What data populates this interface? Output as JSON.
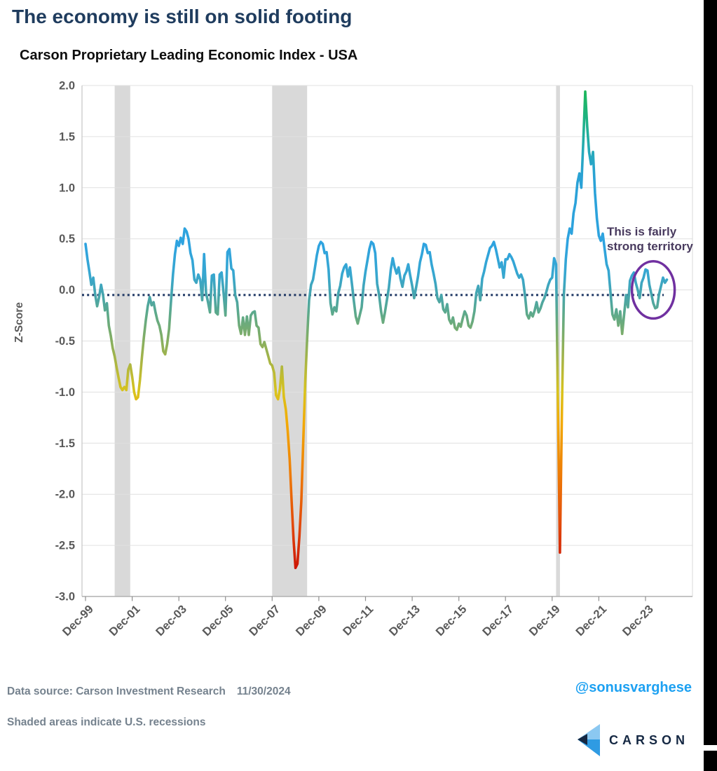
{
  "page": {
    "title": "The economy is still on solid footing"
  },
  "chart": {
    "subtitle": "Carson Proprietary Leading Economic Index - USA",
    "y_axis_title": "Z-Score",
    "y_ticks": [
      "2.0",
      "1.5",
      "1.0",
      "0.5",
      "0.0",
      "-0.5",
      "-1.0",
      "-1.5",
      "-2.0",
      "-2.5",
      "-3.0"
    ],
    "x_tick_labels": [
      "Dec-99",
      "Dec-01",
      "Dec-03",
      "Dec-05",
      "Dec-07",
      "Dec-09",
      "Dec-11",
      "Dec-13",
      "Dec-15",
      "Dec-17",
      "Dec-19",
      "Dec-21",
      "Dec-23"
    ]
  },
  "chart_data": {
    "type": "line",
    "title": "Carson Proprietary Leading Economic Index - USA",
    "xlabel": "",
    "ylabel": "Z-Score",
    "ylim": [
      -3.0,
      2.0
    ],
    "x_start": "Dec-1999",
    "x_end": "Nov-2024",
    "frequency": "monthly",
    "grid": true,
    "x_tick_months": [
      0,
      24,
      48,
      72,
      96,
      120,
      144,
      168,
      192,
      216,
      240,
      264,
      288
    ],
    "series": [
      {
        "name": "Carson Leading Economic Index (z-score)",
        "values": [
          0.45,
          0.3,
          0.18,
          0.05,
          0.12,
          -0.05,
          -0.16,
          -0.07,
          0.05,
          -0.05,
          -0.2,
          -0.13,
          -0.35,
          -0.45,
          -0.57,
          -0.65,
          -0.76,
          -0.86,
          -0.95,
          -0.98,
          -0.95,
          -0.98,
          -0.78,
          -0.73,
          -0.85,
          -1.0,
          -1.07,
          -1.05,
          -0.88,
          -0.66,
          -0.47,
          -0.3,
          -0.16,
          -0.07,
          -0.15,
          -0.12,
          -0.22,
          -0.3,
          -0.35,
          -0.44,
          -0.6,
          -0.63,
          -0.53,
          -0.38,
          -0.1,
          0.15,
          0.35,
          0.48,
          0.43,
          0.51,
          0.45,
          0.6,
          0.57,
          0.5,
          0.36,
          0.29,
          0.1,
          0.07,
          0.15,
          0.1,
          -0.1,
          0.35,
          -0.03,
          -0.12,
          -0.22,
          0.14,
          0.15,
          -0.22,
          -0.24,
          0.15,
          0.17,
          -0.03,
          -0.25,
          0.37,
          0.4,
          0.21,
          0.19,
          -0.05,
          -0.12,
          -0.35,
          -0.43,
          -0.27,
          -0.44,
          -0.26,
          -0.44,
          -0.25,
          -0.22,
          -0.21,
          -0.35,
          -0.37,
          -0.53,
          -0.56,
          -0.51,
          -0.58,
          -0.65,
          -0.72,
          -0.74,
          -0.81,
          -1.03,
          -1.07,
          -0.97,
          -0.75,
          -1.05,
          -1.17,
          -1.38,
          -1.66,
          -2.07,
          -2.45,
          -2.72,
          -2.68,
          -2.41,
          -2.07,
          -1.48,
          -0.9,
          -0.47,
          -0.1,
          0.05,
          0.1,
          0.22,
          0.34,
          0.43,
          0.47,
          0.45,
          0.36,
          0.37,
          0.2,
          -0.13,
          -0.24,
          -0.17,
          -0.21,
          -0.03,
          0.04,
          0.16,
          0.22,
          0.25,
          0.13,
          0.22,
          0.06,
          -0.11,
          -0.26,
          -0.33,
          -0.25,
          -0.17,
          0.04,
          0.18,
          0.29,
          0.4,
          0.47,
          0.45,
          0.36,
          0.06,
          -0.05,
          -0.21,
          -0.32,
          -0.22,
          -0.1,
          0.02,
          0.2,
          0.31,
          0.22,
          0.16,
          0.22,
          0.11,
          0.03,
          0.14,
          0.18,
          0.25,
          0.14,
          0.04,
          -0.08,
          0.02,
          0.13,
          0.27,
          0.35,
          0.45,
          0.44,
          0.36,
          0.37,
          0.25,
          0.16,
          0.06,
          -0.08,
          -0.12,
          -0.05,
          -0.19,
          -0.22,
          -0.14,
          -0.29,
          -0.33,
          -0.27,
          -0.37,
          -0.39,
          -0.33,
          -0.36,
          -0.28,
          -0.21,
          -0.25,
          -0.35,
          -0.37,
          -0.31,
          -0.21,
          -0.03,
          0.04,
          -0.1,
          0.11,
          0.18,
          0.27,
          0.34,
          0.41,
          0.43,
          0.47,
          0.4,
          0.31,
          0.22,
          0.27,
          0.12,
          0.3,
          0.3,
          0.35,
          0.32,
          0.28,
          0.22,
          0.16,
          0.12,
          0.15,
          0.1,
          -0.05,
          -0.24,
          -0.28,
          -0.22,
          -0.26,
          -0.2,
          -0.12,
          -0.22,
          -0.18,
          -0.12,
          -0.08,
          -0.02,
          0.05,
          0.1,
          0.12,
          0.31,
          0.25,
          -1.2,
          -2.57,
          -1.2,
          -0.05,
          0.3,
          0.5,
          0.6,
          0.55,
          0.75,
          0.85,
          1.05,
          1.14,
          1.0,
          1.45,
          1.94,
          1.6,
          1.35,
          1.23,
          1.35,
          0.95,
          0.7,
          0.53,
          0.48,
          0.55,
          0.4,
          0.25,
          0.19,
          -0.03,
          -0.24,
          -0.29,
          -0.19,
          -0.35,
          -0.21,
          -0.43,
          -0.24,
          -0.05,
          -0.17,
          0.09,
          0.14,
          0.17,
          0.07,
          0.0,
          -0.08,
          0.07,
          0.12,
          0.2,
          0.19,
          0.05,
          -0.04,
          -0.13,
          -0.18,
          -0.17,
          -0.04,
          0.04,
          0.12,
          0.07,
          0.1
        ]
      }
    ],
    "baseline_value": -0.05,
    "recession_bands_months": [
      [
        15,
        23
      ],
      [
        96,
        114
      ],
      [
        242,
        244
      ]
    ],
    "color_stops": [
      [
        1.95,
        "#1db75a"
      ],
      [
        1.6,
        "#1fb18e"
      ],
      [
        1.35,
        "#26a9ba"
      ],
      [
        1.1,
        "#2aa2d6"
      ],
      [
        0.45,
        "#2ea3e0"
      ],
      [
        0.15,
        "#37a7d0"
      ],
      [
        -0.05,
        "#46a5ad"
      ],
      [
        -0.22,
        "#5ba98d"
      ],
      [
        -0.45,
        "#7ead68"
      ],
      [
        -0.7,
        "#a9b544"
      ],
      [
        -1.0,
        "#d9c31c"
      ],
      [
        -1.3,
        "#f2aa06"
      ],
      [
        -1.8,
        "#ee7c06"
      ],
      [
        -2.3,
        "#e2490b"
      ],
      [
        -2.75,
        "#cb1305"
      ]
    ],
    "annotation": {
      "line1": "This is fairly",
      "line2": "strong territory",
      "ellipse_center_month": 292,
      "ellipse_center_value": 0.0,
      "ellipse_rx_months": 11,
      "ellipse_ry_value": 0.28,
      "ellipse_color": "#7030a0"
    }
  },
  "footer": {
    "source": "Data source: Carson Investment Research",
    "date": "11/30/2024",
    "note": "Shaded areas indicate U.S. recessions",
    "handle": "@sonusvarghese",
    "logo_text": "CARSON"
  },
  "colors": {
    "title": "#1f3c5e",
    "axis_text": "#595959",
    "grid": "#e0e0e0",
    "recession_band": "#d9d9d9",
    "baseline": "#1f3864",
    "handle_blue": "#1da1f2",
    "annotation_text": "#483a5e",
    "logo_navy": "#152843",
    "logo_light_blue": "#8bc8f1",
    "logo_blue": "#2f9be3",
    "footer_text": "#75828e"
  }
}
